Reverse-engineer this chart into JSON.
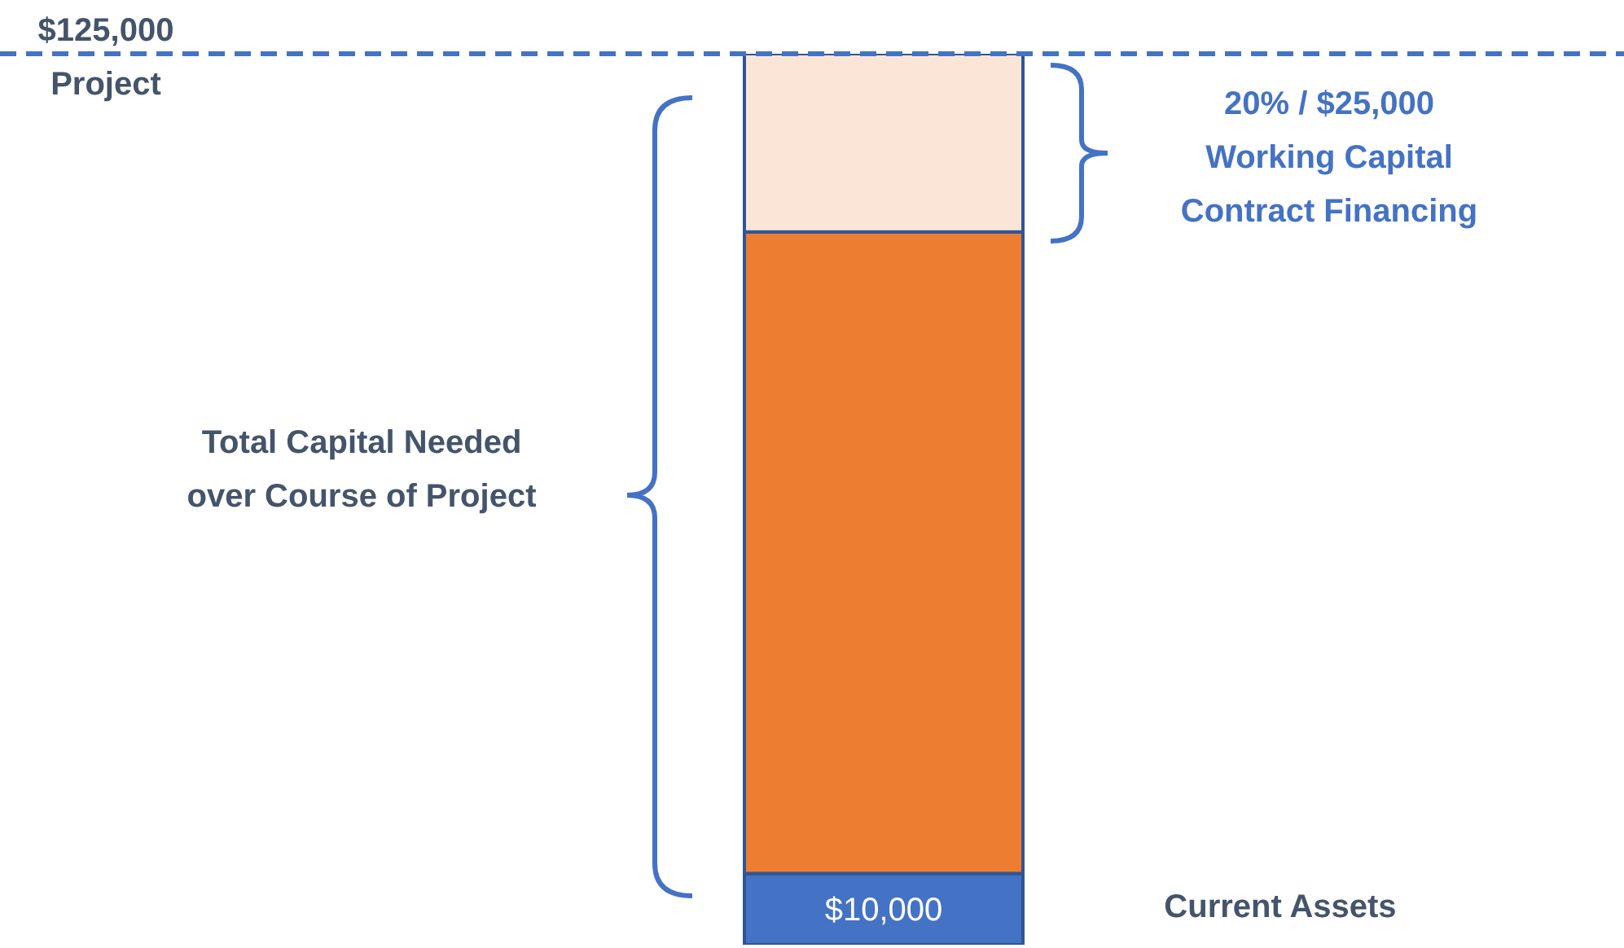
{
  "chart_data": {
    "type": "bar",
    "stacked": true,
    "categories": [
      null
    ],
    "series": [
      {
        "color": "#4472c4",
        "values": [
          10000
        ],
        "value_labels": [
          "$10,000"
        ]
      },
      {
        "color": "#ed7d31",
        "values": [
          90000
        ]
      },
      {
        "color": "#fbe5d6",
        "values": [
          25000
        ]
      }
    ],
    "ylim": [
      0,
      125000
    ],
    "tick_labels": false,
    "legend": false,
    "grid": false,
    "ref_lines": [
      {
        "axis": "y",
        "value": 125000,
        "label": "$125,000\nProject",
        "color": "#4472c4",
        "line_style": "dashed"
      }
    ],
    "annotations": [
      "Total Capital Needed\nover Course of Project",
      "20% / $25,000\nWorking Capital\nContract Financing",
      "Current Assets"
    ]
  }
}
